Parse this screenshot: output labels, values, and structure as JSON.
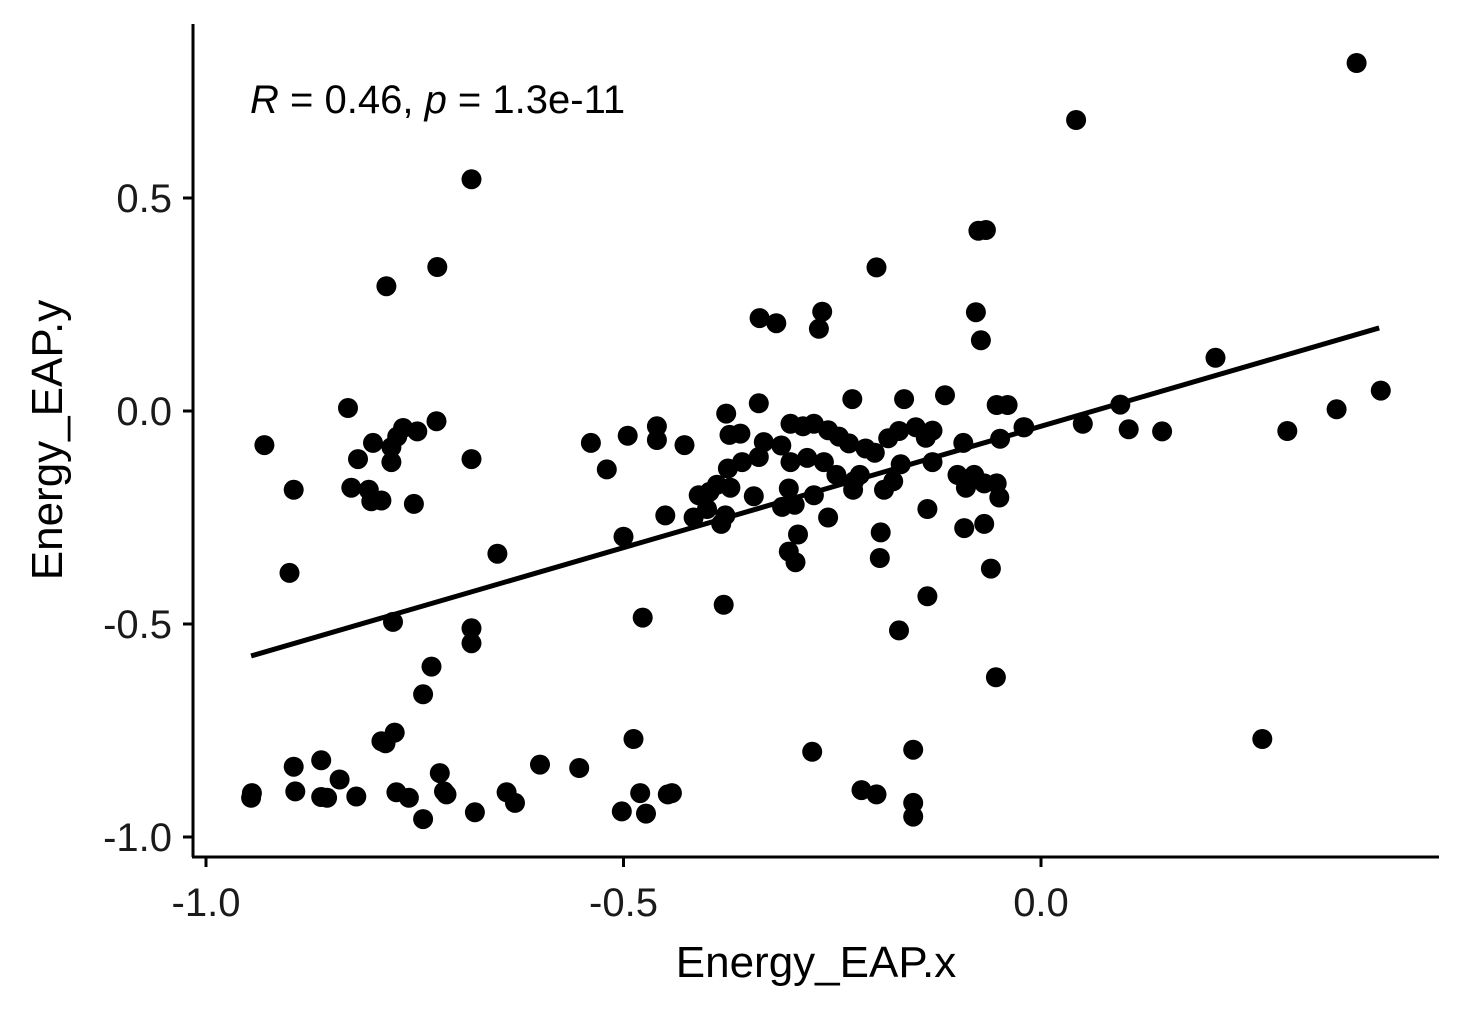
{
  "chart_data": {
    "type": "scatter",
    "xlabel": "Energy_EAP.x",
    "ylabel": "Energy_EAP.y",
    "xlim": [
      -1.02,
      0.47
    ],
    "ylim": [
      -1.05,
      0.9
    ],
    "x_ticks": [
      -1.0,
      -0.5,
      0.0
    ],
    "x_tick_labels": [
      "-1.0",
      "-0.5",
      "0.0"
    ],
    "y_ticks": [
      -1.0,
      -0.5,
      0.0,
      0.5
    ],
    "y_tick_labels": [
      "-1.0",
      "-0.5",
      "0.0",
      "0.5"
    ],
    "grid": false,
    "annotation": {
      "r_symbol": "R",
      "r_text": " = 0.46, ",
      "p_symbol": "p",
      "p_text": " = 1.3e-11"
    },
    "regression_line": {
      "x": [
        -0.946,
        0.405
      ],
      "y": [
        -0.575,
        0.195
      ]
    },
    "point_color": "#000000",
    "points": [
      [
        0.378,
        0.817
      ],
      [
        0.042,
        0.683
      ],
      [
        -0.682,
        0.544
      ],
      [
        -0.066,
        0.425
      ],
      [
        -0.075,
        0.423
      ],
      [
        -0.197,
        0.337
      ],
      [
        -0.723,
        0.338
      ],
      [
        -0.784,
        0.293
      ],
      [
        -0.262,
        0.233
      ],
      [
        -0.078,
        0.232
      ],
      [
        -0.337,
        0.218
      ],
      [
        -0.317,
        0.206
      ],
      [
        -0.266,
        0.193
      ],
      [
        -0.072,
        0.166
      ],
      [
        0.209,
        0.125
      ],
      [
        0.407,
        0.048
      ],
      [
        0.095,
        0.015
      ],
      [
        0.354,
        0.004
      ],
      [
        -0.83,
        0.007
      ],
      [
        -0.226,
        0.028
      ],
      [
        -0.164,
        0.028
      ],
      [
        -0.115,
        0.037
      ],
      [
        -0.053,
        0.014
      ],
      [
        -0.04,
        0.014
      ],
      [
        -0.338,
        0.018
      ],
      [
        -0.377,
        -0.006
      ],
      [
        -0.724,
        -0.024
      ],
      [
        -0.764,
        -0.04
      ],
      [
        -0.771,
        -0.06
      ],
      [
        -0.747,
        -0.048
      ],
      [
        -0.46,
        -0.036
      ],
      [
        -0.495,
        -0.058
      ],
      [
        -0.46,
        -0.068
      ],
      [
        -0.427,
        -0.08
      ],
      [
        -0.539,
        -0.075
      ],
      [
        -0.93,
        -0.08
      ],
      [
        -0.8,
        -0.075
      ],
      [
        -0.778,
        -0.085
      ],
      [
        -0.778,
        -0.12
      ],
      [
        -0.818,
        -0.113
      ],
      [
        -0.682,
        -0.113
      ],
      [
        -0.52,
        -0.137
      ],
      [
        -0.373,
        -0.056
      ],
      [
        -0.36,
        -0.053
      ],
      [
        -0.332,
        -0.073
      ],
      [
        -0.311,
        -0.081
      ],
      [
        -0.3,
        -0.03
      ],
      [
        -0.285,
        -0.036
      ],
      [
        -0.272,
        -0.03
      ],
      [
        -0.255,
        -0.045
      ],
      [
        -0.242,
        -0.06
      ],
      [
        -0.23,
        -0.076
      ],
      [
        -0.21,
        -0.088
      ],
      [
        -0.199,
        -0.098
      ],
      [
        -0.183,
        -0.064
      ],
      [
        -0.17,
        -0.047
      ],
      [
        -0.15,
        -0.038
      ],
      [
        -0.138,
        -0.063
      ],
      [
        -0.13,
        -0.046
      ],
      [
        -0.093,
        -0.075
      ],
      [
        -0.049,
        -0.065
      ],
      [
        -0.02,
        -0.038
      ],
      [
        -0.021,
        -0.038
      ],
      [
        0.05,
        -0.03
      ],
      [
        0.105,
        -0.043
      ],
      [
        0.145,
        -0.048
      ],
      [
        0.295,
        -0.047
      ],
      [
        -0.068,
        -0.17
      ],
      [
        -0.053,
        -0.17
      ],
      [
        -0.05,
        -0.203
      ],
      [
        -0.08,
        -0.15
      ],
      [
        -0.1,
        -0.15
      ],
      [
        -0.09,
        -0.18
      ],
      [
        -0.13,
        -0.12
      ],
      [
        -0.168,
        -0.125
      ],
      [
        -0.177,
        -0.165
      ],
      [
        -0.188,
        -0.185
      ],
      [
        -0.224,
        -0.165
      ],
      [
        -0.217,
        -0.15
      ],
      [
        -0.225,
        -0.185
      ],
      [
        -0.245,
        -0.15
      ],
      [
        -0.26,
        -0.12
      ],
      [
        -0.28,
        -0.11
      ],
      [
        -0.3,
        -0.12
      ],
      [
        -0.338,
        -0.108
      ],
      [
        -0.358,
        -0.12
      ],
      [
        -0.375,
        -0.135
      ],
      [
        -0.388,
        -0.173
      ],
      [
        -0.372,
        -0.18
      ],
      [
        -0.41,
        -0.198
      ],
      [
        -0.397,
        -0.19
      ],
      [
        -0.344,
        -0.2
      ],
      [
        -0.302,
        -0.182
      ],
      [
        -0.272,
        -0.198
      ],
      [
        -0.31,
        -0.225
      ],
      [
        -0.295,
        -0.22
      ],
      [
        -0.4,
        -0.23
      ],
      [
        -0.416,
        -0.25
      ],
      [
        -0.378,
        -0.245
      ],
      [
        -0.383,
        -0.265
      ],
      [
        -0.45,
        -0.245
      ],
      [
        -0.826,
        -0.18
      ],
      [
        -0.805,
        -0.185
      ],
      [
        -0.79,
        -0.21
      ],
      [
        -0.802,
        -0.212
      ],
      [
        -0.895,
        -0.185
      ],
      [
        -0.751,
        -0.218
      ],
      [
        -0.5,
        -0.295
      ],
      [
        -0.255,
        -0.25
      ],
      [
        -0.192,
        -0.285
      ],
      [
        -0.136,
        -0.23
      ],
      [
        -0.092,
        -0.275
      ],
      [
        -0.068,
        -0.265
      ],
      [
        -0.291,
        -0.29
      ],
      [
        -0.302,
        -0.33
      ],
      [
        -0.294,
        -0.355
      ],
      [
        -0.193,
        -0.345
      ],
      [
        -0.06,
        -0.37
      ],
      [
        -0.651,
        -0.335
      ],
      [
        -0.9,
        -0.38
      ],
      [
        -0.38,
        -0.455
      ],
      [
        -0.477,
        -0.485
      ],
      [
        -0.136,
        -0.435
      ],
      [
        -0.17,
        -0.515
      ],
      [
        -0.776,
        -0.495
      ],
      [
        -0.682,
        -0.51
      ],
      [
        -0.682,
        -0.545
      ],
      [
        -0.73,
        -0.6
      ],
      [
        -0.054,
        -0.625
      ],
      [
        -0.74,
        -0.665
      ],
      [
        -0.79,
        -0.775
      ],
      [
        -0.785,
        -0.78
      ],
      [
        -0.774,
        -0.755
      ],
      [
        -0.488,
        -0.77
      ],
      [
        0.265,
        -0.77
      ],
      [
        -0.274,
        -0.8
      ],
      [
        -0.153,
        -0.795
      ],
      [
        -0.895,
        -0.835
      ],
      [
        -0.862,
        -0.82
      ],
      [
        -0.84,
        -0.865
      ],
      [
        -0.72,
        -0.85
      ],
      [
        -0.6,
        -0.83
      ],
      [
        -0.553,
        -0.838
      ],
      [
        -0.946,
        -0.908
      ],
      [
        -0.945,
        -0.897
      ],
      [
        -0.893,
        -0.893
      ],
      [
        -0.862,
        -0.906
      ],
      [
        -0.855,
        -0.908
      ],
      [
        -0.82,
        -0.905
      ],
      [
        -0.772,
        -0.895
      ],
      [
        -0.757,
        -0.908
      ],
      [
        -0.715,
        -0.893
      ],
      [
        -0.712,
        -0.9
      ],
      [
        -0.64,
        -0.895
      ],
      [
        -0.63,
        -0.92
      ],
      [
        -0.48,
        -0.897
      ],
      [
        -0.442,
        -0.897
      ],
      [
        -0.447,
        -0.9
      ],
      [
        -0.215,
        -0.89
      ],
      [
        -0.197,
        -0.9
      ],
      [
        -0.153,
        -0.92
      ],
      [
        -0.74,
        -0.958
      ],
      [
        -0.678,
        -0.942
      ],
      [
        -0.502,
        -0.94
      ],
      [
        -0.473,
        -0.945
      ],
      [
        -0.153,
        -0.952
      ]
    ]
  }
}
